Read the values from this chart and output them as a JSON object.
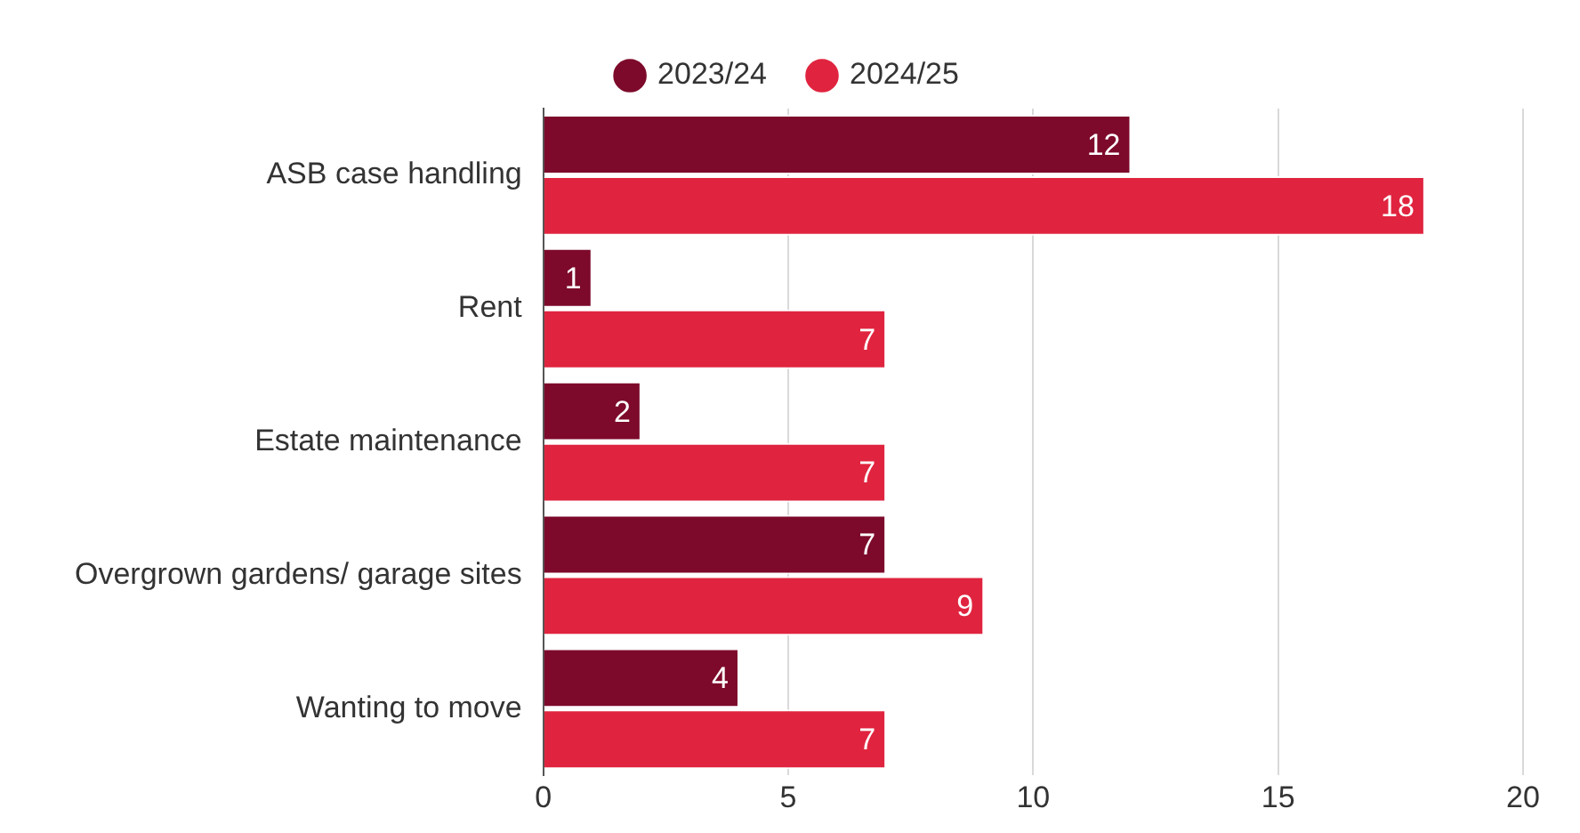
{
  "chart_data": {
    "type": "bar",
    "orientation": "horizontal",
    "categories": [
      "ASB case handling",
      "Rent",
      "Estate maintenance",
      "Overgrown gardens/ garage sites",
      "Wanting to move"
    ],
    "series": [
      {
        "name": "2023/24",
        "color": "#7d0a2b",
        "values": [
          12,
          1,
          2,
          7,
          4
        ]
      },
      {
        "name": "2024/25",
        "color": "#e0243f",
        "values": [
          18,
          7,
          7,
          9,
          7
        ]
      }
    ],
    "xlim": [
      0,
      20
    ],
    "xticks": [
      0,
      5,
      10,
      15,
      20
    ],
    "grid": "x",
    "legend": "top",
    "data_labels": true
  }
}
